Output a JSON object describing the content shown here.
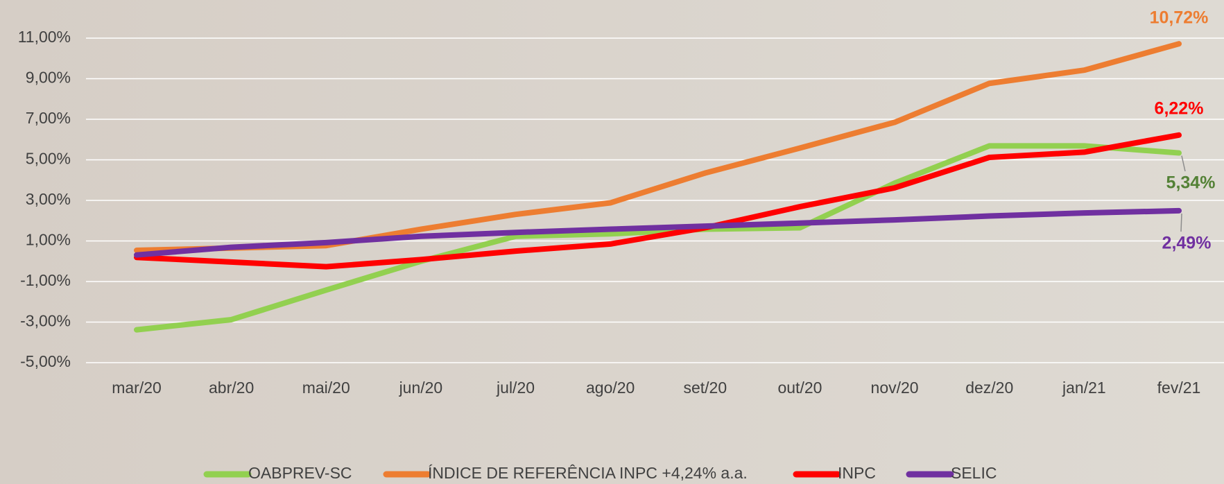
{
  "chart_data": {
    "type": "line",
    "categories": [
      "mar/20",
      "abr/20",
      "mai/20",
      "jun/20",
      "jul/20",
      "ago/20",
      "set/20",
      "out/20",
      "nov/20",
      "dez/20",
      "jan/21",
      "fev/21"
    ],
    "series": [
      {
        "name": "OABPREV-SC",
        "color": "#92d050",
        "label_color": "#538135",
        "values": [
          -3.38,
          -2.88,
          -1.42,
          0.0,
          1.23,
          1.35,
          1.58,
          1.65,
          3.85,
          5.69,
          5.69,
          5.34
        ],
        "value_labels": [
          null,
          null,
          null,
          null,
          null,
          null,
          null,
          null,
          null,
          null,
          null,
          "5,34%"
        ]
      },
      {
        "name": "ÍNDICE DE REFERÊNCIA INPC +4,24% a.a.",
        "color": "#ed7d31",
        "label_color": "#ed7d31",
        "values": [
          0.54,
          0.65,
          0.77,
          1.58,
          2.31,
          2.88,
          4.35,
          5.58,
          6.85,
          8.77,
          9.42,
          10.72
        ],
        "value_labels": [
          null,
          null,
          null,
          null,
          null,
          null,
          null,
          null,
          null,
          null,
          null,
          "10,72%"
        ]
      },
      {
        "name": "INPC",
        "color": "#ff0000",
        "label_color": "#ff0000",
        "values": [
          0.19,
          -0.04,
          -0.27,
          0.08,
          0.5,
          0.85,
          1.65,
          2.69,
          3.62,
          5.12,
          5.38,
          6.22
        ],
        "value_labels": [
          null,
          null,
          null,
          null,
          null,
          null,
          null,
          null,
          null,
          null,
          null,
          "6,22%"
        ]
      },
      {
        "name": "SELIC",
        "color": "#7030a0",
        "label_color": "#7030a0",
        "values": [
          0.31,
          0.69,
          0.92,
          1.23,
          1.42,
          1.58,
          1.73,
          1.88,
          2.04,
          2.23,
          2.38,
          2.49
        ],
        "value_labels": [
          null,
          null,
          null,
          null,
          null,
          null,
          null,
          null,
          null,
          null,
          null,
          "2,49%"
        ]
      }
    ],
    "ylim": [
      -5,
      11
    ],
    "yticks": [
      {
        "value": -5,
        "label": "-5,00%"
      },
      {
        "value": -3,
        "label": "-3,00%"
      },
      {
        "value": -1,
        "label": "-1,00%"
      },
      {
        "value": 1,
        "label": "1,00%"
      },
      {
        "value": 3,
        "label": "3,00%"
      },
      {
        "value": 5,
        "label": "5,00%"
      },
      {
        "value": 7,
        "label": "7,00%"
      },
      {
        "value": 9,
        "label": "9,00%"
      },
      {
        "value": 11,
        "label": "11,00%"
      }
    ],
    "grid": true,
    "legend": "bottom"
  }
}
